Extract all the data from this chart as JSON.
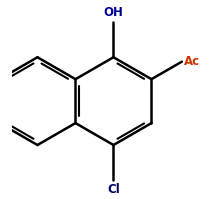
{
  "background_color": "#ffffff",
  "bond_color": "#000000",
  "oh_color": "#000099",
  "ac_color": "#cc3300",
  "cl_color": "#000066",
  "line_width": 1.8,
  "oh_label": "OH",
  "ac_label": "Ac",
  "cl_label": "Cl"
}
